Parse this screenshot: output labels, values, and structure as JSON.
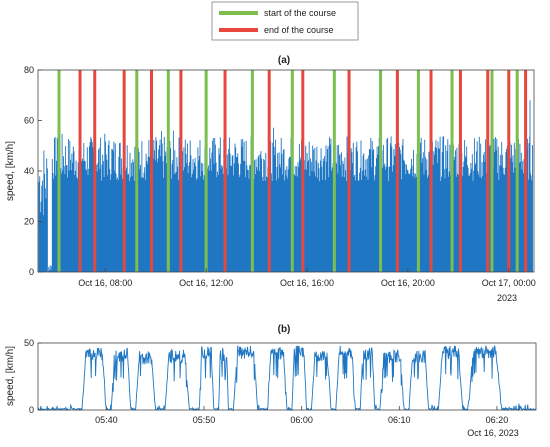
{
  "legend": {
    "items": [
      {
        "label": "start of the course",
        "color": "#7dbf4f"
      },
      {
        "label": "end of the course",
        "color": "#e8473f"
      }
    ]
  },
  "chart_data": [
    {
      "type": "bar",
      "title": "(a)",
      "ylabel": "speed, [km/h]",
      "xlabel": "",
      "ylim": [
        0,
        80
      ],
      "yticks": [
        0,
        20,
        40,
        60,
        80
      ],
      "xlim": [
        "2023-10-16 05:20",
        "2023-10-17 01:00"
      ],
      "xticks": [
        {
          "label": "Oct 16, 08:00",
          "x": "2023-10-16 08:00"
        },
        {
          "label": "Oct 16, 12:00",
          "x": "2023-10-16 12:00"
        },
        {
          "label": "Oct 16, 16:00",
          "x": "2023-10-16 16:00"
        },
        {
          "label": "Oct 16, 20:00",
          "x": "2023-10-16 20:00"
        },
        {
          "label": "Oct 17, 00:00",
          "x": "2023-10-17 00:00"
        }
      ],
      "x_secondary_label": "2023",
      "series_color": "#1f77c4",
      "typical_speed_range": [
        40,
        50
      ],
      "peak_speed": 68,
      "start_course_times": [
        "06:10",
        "09:15",
        "10:30",
        "12:00",
        "13:50",
        "15:25",
        "17:05",
        "18:55",
        "20:25",
        "21:45",
        "23:20",
        "00:20"
      ],
      "end_course_times": [
        "07:00",
        "07:35",
        "08:45",
        "09:50",
        "11:00",
        "12:45",
        "14:30",
        "15:50",
        "17:40",
        "19:35",
        "20:55",
        "22:05",
        "23:10",
        "00:00",
        "00:40"
      ],
      "legend": [
        "start of the course",
        "end of the course"
      ],
      "grid": false
    },
    {
      "type": "line",
      "title": "(b)",
      "ylabel": "speed, [km/h]",
      "xlabel": "",
      "ylim": [
        0,
        50
      ],
      "yticks": [
        0,
        50
      ],
      "xlim": [
        "2023-10-16 05:33",
        "2023-10-16 06:24"
      ],
      "xticks": [
        {
          "label": "05:40",
          "x": "2023-10-16 05:40"
        },
        {
          "label": "05:50",
          "x": "2023-10-16 05:50"
        },
        {
          "label": "06:00",
          "x": "2023-10-16 06:00"
        },
        {
          "label": "06:10",
          "x": "2023-10-16 06:10"
        },
        {
          "label": "06:20",
          "x": "2023-10-16 06:20"
        }
      ],
      "x_secondary_label": "Oct 16, 2023",
      "series_color": "#1f77c4",
      "bursts": [
        {
          "start": "05:37:30",
          "end": "05:40:00",
          "peak": 45
        },
        {
          "start": "05:40:30",
          "end": "05:42:30",
          "peak": 44
        },
        {
          "start": "05:43:00",
          "end": "05:45:00",
          "peak": 42
        },
        {
          "start": "05:46:00",
          "end": "05:48:30",
          "peak": 43
        },
        {
          "start": "05:49:30",
          "end": "05:51:00",
          "peak": 46
        },
        {
          "start": "05:51:30",
          "end": "05:52:30",
          "peak": 44
        },
        {
          "start": "05:53:00",
          "end": "05:55:30",
          "peak": 46
        },
        {
          "start": "05:56:30",
          "end": "05:58:30",
          "peak": 45
        },
        {
          "start": "05:59:00",
          "end": "06:00:30",
          "peak": 47
        },
        {
          "start": "06:01:00",
          "end": "06:03:00",
          "peak": 42
        },
        {
          "start": "06:03:30",
          "end": "06:05:30",
          "peak": 46
        },
        {
          "start": "06:06:00",
          "end": "06:07:30",
          "peak": 45
        },
        {
          "start": "06:08:00",
          "end": "06:10:30",
          "peak": 43
        },
        {
          "start": "06:11:00",
          "end": "06:13:00",
          "peak": 43
        },
        {
          "start": "06:14:00",
          "end": "06:16:30",
          "peak": 46
        },
        {
          "start": "06:17:00",
          "end": "06:20:30",
          "peak": 46
        }
      ],
      "grid": false
    }
  ]
}
